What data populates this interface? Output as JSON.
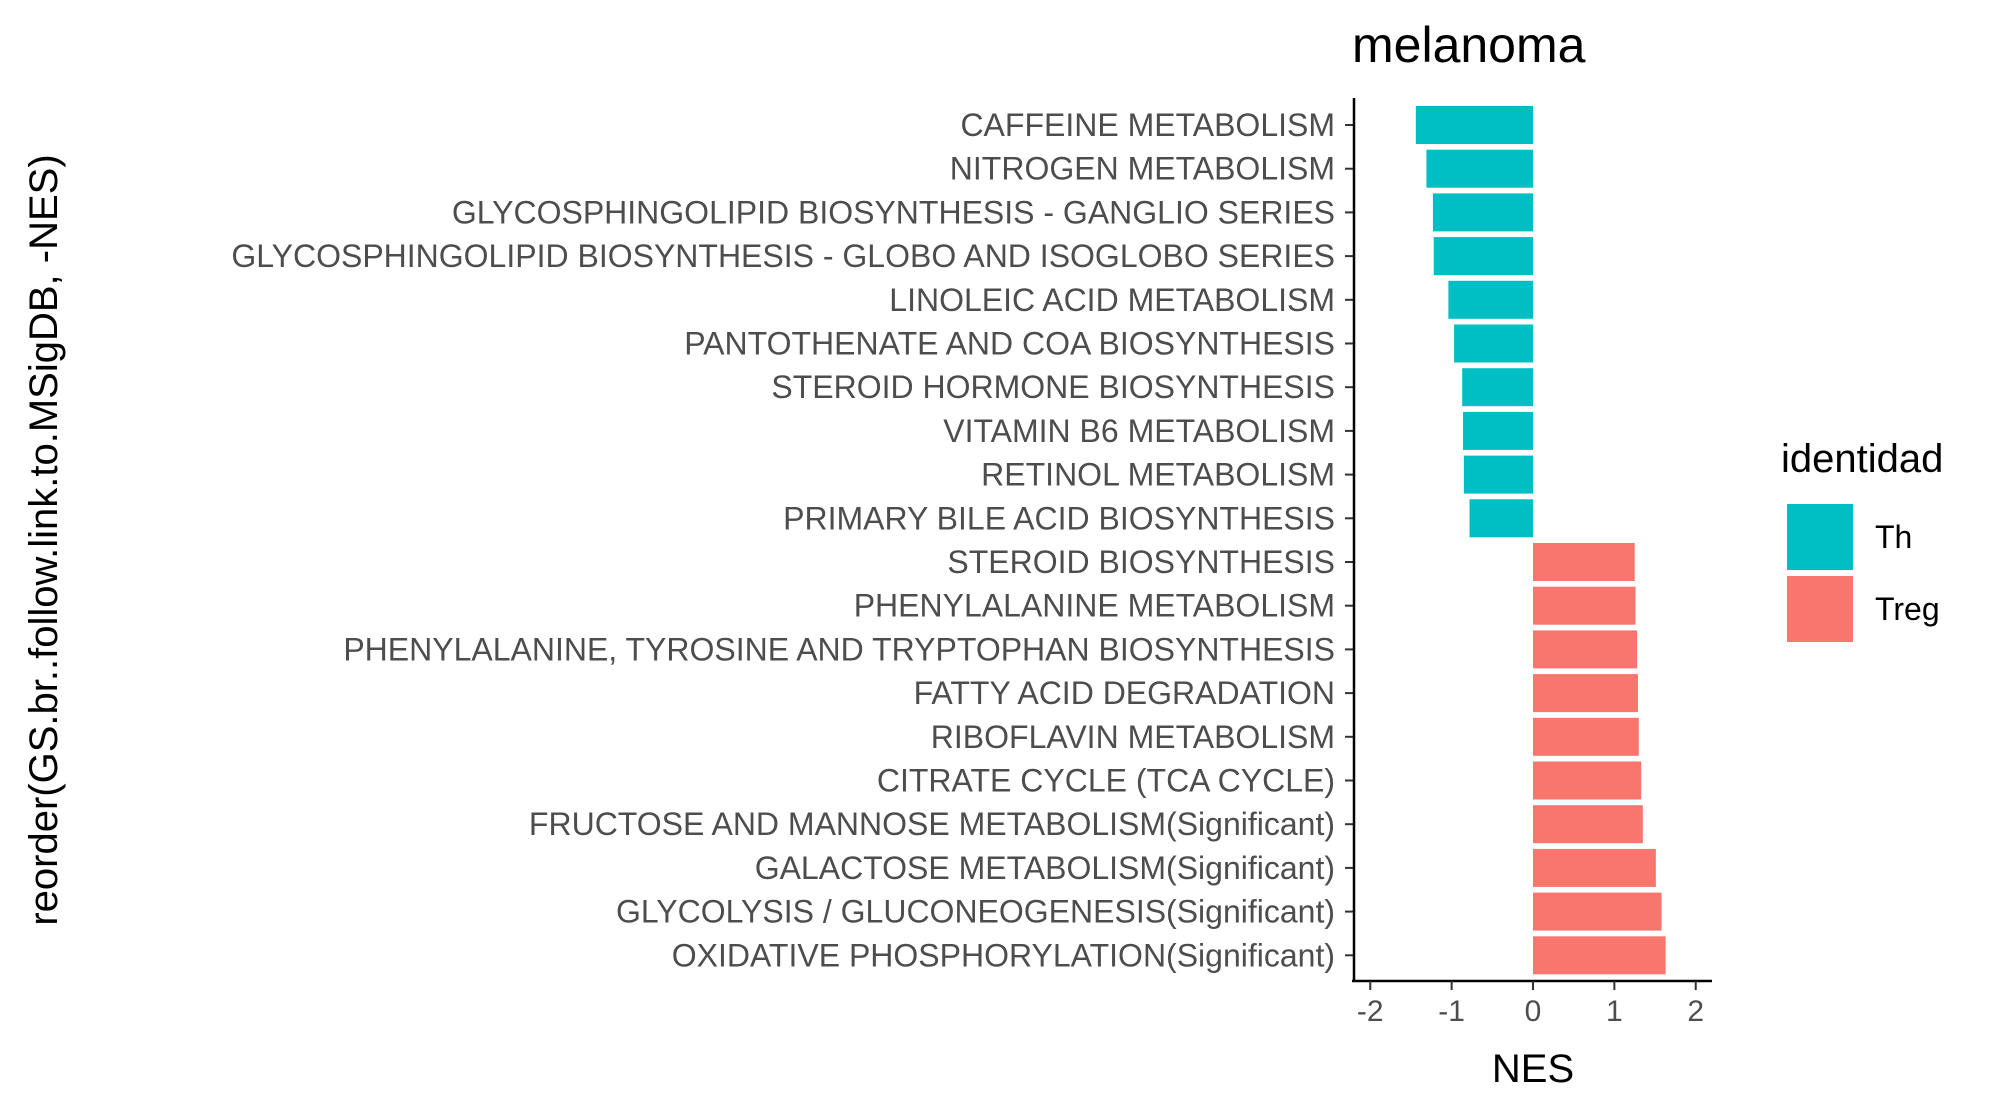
{
  "chart_data": {
    "type": "bar",
    "orientation": "horizontal",
    "title": "melanoma",
    "xlabel": "NES",
    "ylabel": "reorder(GS.br..follow.link.to.MSigDB, -NES)",
    "xlim": [
      -2.2,
      2.2
    ],
    "xticks": [
      -2,
      -1,
      0,
      1,
      2
    ],
    "xtick_labels": [
      "-2",
      "-1",
      "0",
      "1",
      "2"
    ],
    "grid": false,
    "legend_position": "right",
    "legend_title": "identidad",
    "legend": [
      {
        "label": "Th",
        "color": "#00BFC4"
      },
      {
        "label": "Treg",
        "color": "#F8766D"
      }
    ],
    "categories": [
      "CAFFEINE METABOLISM",
      "NITROGEN METABOLISM",
      "GLYCOSPHINGOLIPID BIOSYNTHESIS - GANGLIO SERIES",
      "GLYCOSPHINGOLIPID BIOSYNTHESIS - GLOBO AND ISOGLOBO SERIES",
      "LINOLEIC ACID METABOLISM",
      "PANTOTHENATE AND COA BIOSYNTHESIS",
      "STEROID HORMONE BIOSYNTHESIS",
      "VITAMIN B6 METABOLISM",
      "RETINOL METABOLISM",
      "PRIMARY BILE ACID BIOSYNTHESIS",
      "STEROID BIOSYNTHESIS",
      "PHENYLALANINE METABOLISM",
      "PHENYLALANINE, TYROSINE AND TRYPTOPHAN BIOSYNTHESIS",
      "FATTY ACID DEGRADATION",
      "RIBOFLAVIN METABOLISM",
      "CITRATE CYCLE (TCA CYCLE)",
      "FRUCTOSE AND MANNOSE METABOLISM(Significant)",
      "GALACTOSE METABOLISM(Significant)",
      "GLYCOLYSIS / GLUCONEOGENESIS(Significant)",
      "OXIDATIVE PHOSPHORYLATION(Significant)"
    ],
    "values": [
      -1.44,
      -1.31,
      -1.23,
      -1.22,
      -1.04,
      -0.97,
      -0.87,
      -0.86,
      -0.85,
      -0.78,
      1.25,
      1.26,
      1.28,
      1.29,
      1.3,
      1.33,
      1.35,
      1.51,
      1.58,
      1.63
    ],
    "groups": [
      "Th",
      "Th",
      "Th",
      "Th",
      "Th",
      "Th",
      "Th",
      "Th",
      "Th",
      "Th",
      "Treg",
      "Treg",
      "Treg",
      "Treg",
      "Treg",
      "Treg",
      "Treg",
      "Treg",
      "Treg",
      "Treg"
    ]
  }
}
